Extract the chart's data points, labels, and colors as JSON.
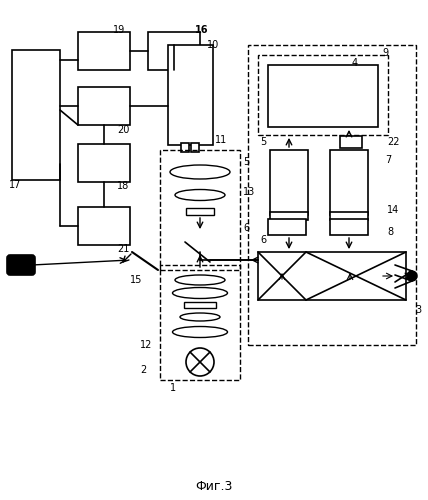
{
  "title": "Фиг.3",
  "bg_color": "#ffffff",
  "line_color": "#000000",
  "dashed_color": "#555555"
}
